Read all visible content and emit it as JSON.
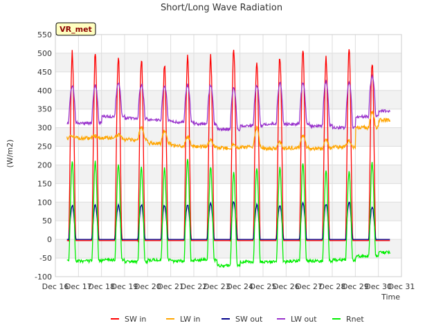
{
  "chart_data": {
    "type": "line",
    "title": "Short/Long Wave Radiation",
    "xlabel": "Time",
    "ylabel": "(W/m2)",
    "badge": "VR_met",
    "ylim": [
      -100,
      550
    ],
    "yticks": [
      -100,
      -50,
      0,
      50,
      100,
      150,
      200,
      250,
      300,
      350,
      400,
      450,
      500,
      550
    ],
    "xlim": [
      16,
      31
    ],
    "xticks": [
      {
        "x": 16,
        "label": "Dec 16"
      },
      {
        "x": 17,
        "label": "Dec 17"
      },
      {
        "x": 18,
        "label": "Dec 18"
      },
      {
        "x": 19,
        "label": "Dec 19"
      },
      {
        "x": 20,
        "label": "Dec 20"
      },
      {
        "x": 21,
        "label": "Dec 21"
      },
      {
        "x": 22,
        "label": "Dec 22"
      },
      {
        "x": 23,
        "label": "Dec 23"
      },
      {
        "x": 24,
        "label": "Dec 24"
      },
      {
        "x": 25,
        "label": "Dec 25"
      },
      {
        "x": 26,
        "label": "Dec 26"
      },
      {
        "x": 27,
        "label": "Dec 27"
      },
      {
        "x": 28,
        "label": "Dec 28"
      },
      {
        "x": 29,
        "label": "Dec 29"
      },
      {
        "x": 30,
        "label": "Dec 30"
      },
      {
        "x": 31,
        "label": "Dec 31"
      }
    ],
    "grid": true,
    "legend_position": "bottom",
    "series": [
      {
        "name": "SW in",
        "color": "#ff0000",
        "daily_peak": [
          500,
          490,
          485,
          470,
          495,
          490,
          515,
          478,
          492,
          508,
          487,
          507,
          475,
          440
        ]
      },
      {
        "name": "LW in",
        "color": "#ffa500",
        "night_level": [
          272,
          272,
          268,
          258,
          252,
          250,
          245,
          248,
          244,
          246,
          244,
          248,
          300,
          320
        ],
        "day_peak": [
          278,
          280,
          300,
          290,
          275,
          265,
          255,
          300,
          260,
          280,
          270,
          265,
          340,
          360
        ]
      },
      {
        "name": "SW out",
        "color": "#00008b",
        "daily_peak": [
          92,
          92,
          93,
          92,
          93,
          97,
          102,
          92,
          92,
          98,
          95,
          100,
          88,
          30
        ]
      },
      {
        "name": "LW out",
        "color": "#9932cc",
        "night_level": [
          313,
          330,
          325,
          320,
          315,
          310,
          295,
          305,
          310,
          310,
          305,
          300,
          330,
          345
        ],
        "daily_peak": [
          412,
          420,
          415,
          412,
          415,
          415,
          410,
          415,
          420,
          420,
          425,
          420,
          440,
          420
        ]
      },
      {
        "name": "Rnet",
        "color": "#00ee00",
        "night_level": [
          -58,
          -55,
          -60,
          -55,
          -58,
          -55,
          -70,
          -60,
          -60,
          -58,
          -58,
          -55,
          -45,
          -35
        ],
        "daily_peak": [
          208,
          203,
          193,
          192,
          215,
          193,
          178,
          190,
          193,
          203,
          183,
          182,
          205,
          180
        ]
      }
    ]
  }
}
